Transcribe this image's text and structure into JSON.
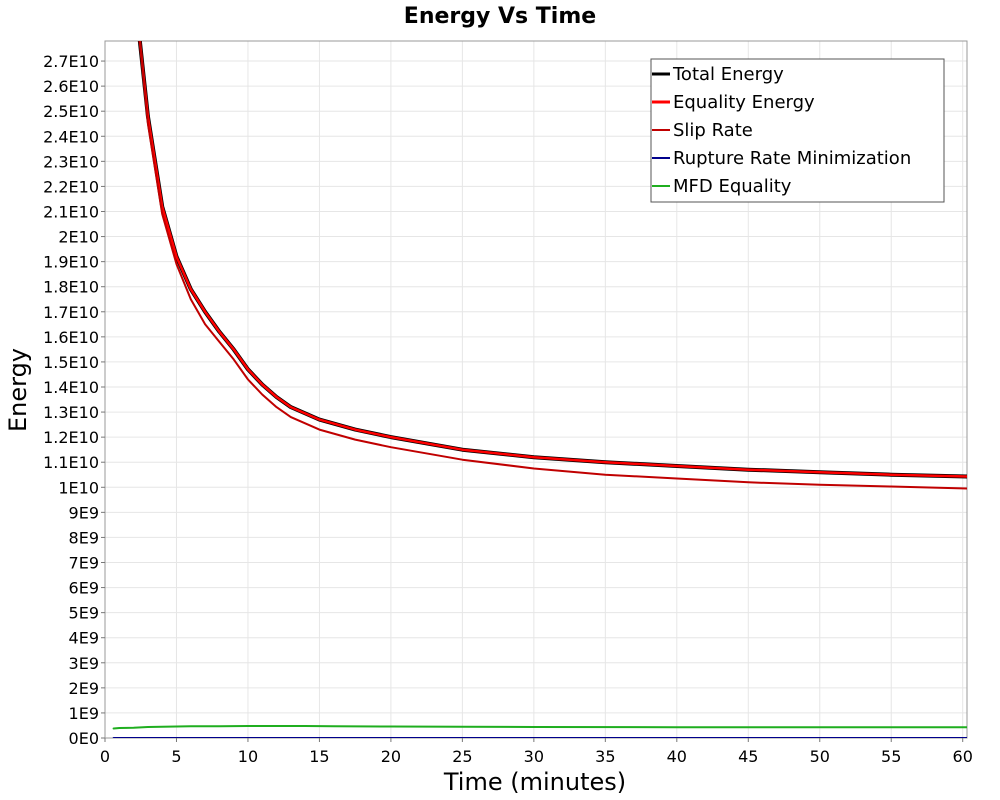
{
  "chart_data": {
    "type": "line",
    "title": "Energy Vs Time",
    "xlabel": "Time (minutes)",
    "ylabel": "Energy",
    "xlim": [
      0,
      60.3
    ],
    "ylim": [
      0,
      27800000000
    ],
    "grid": true,
    "legend_position": "top-right",
    "x_ticks": [
      0,
      5,
      10,
      15,
      20,
      25,
      30,
      35,
      40,
      45,
      50,
      55,
      60
    ],
    "x_tick_labels": [
      "0",
      "5",
      "10",
      "15",
      "20",
      "25",
      "30",
      "35",
      "40",
      "45",
      "50",
      "55",
      "60"
    ],
    "y_ticks": [
      0,
      1000000000,
      2000000000,
      3000000000,
      4000000000,
      5000000000,
      6000000000,
      7000000000,
      8000000000,
      9000000000,
      10000000000,
      11000000000,
      12000000000,
      13000000000,
      14000000000,
      15000000000,
      16000000000,
      17000000000,
      18000000000,
      19000000000,
      20000000000,
      21000000000,
      22000000000,
      23000000000,
      24000000000,
      25000000000,
      26000000000,
      27000000000
    ],
    "y_tick_labels": [
      "0E0",
      "1E9",
      "2E9",
      "3E9",
      "4E9",
      "5E9",
      "6E9",
      "7E9",
      "8E9",
      "9E9",
      "1E10",
      "1.1E10",
      "1.2E10",
      "1.3E10",
      "1.4E10",
      "1.5E10",
      "1.6E10",
      "1.7E10",
      "1.8E10",
      "1.9E10",
      "2E10",
      "2.1E10",
      "2.2E10",
      "2.3E10",
      "2.4E10",
      "2.5E10",
      "2.6E10",
      "2.7E10"
    ],
    "series": [
      {
        "name": "Total Energy",
        "color": "#000000",
        "x": [
          2.4,
          3,
          4,
          5,
          6,
          7,
          8,
          9,
          10,
          11,
          12,
          13,
          15,
          17.5,
          20,
          25,
          30,
          35,
          40,
          45,
          50,
          55,
          60.3
        ],
        "y": [
          28000000000,
          24800000000,
          21200000000,
          19200000000,
          17900000000,
          17000000000,
          16200000000,
          15500000000,
          14700000000,
          14100000000,
          13600000000,
          13200000000,
          12700000000,
          12300000000,
          12000000000,
          11500000000,
          11200000000,
          11000000000,
          10850000000,
          10700000000,
          10600000000,
          10500000000,
          10430000000
        ]
      },
      {
        "name": "Equality Energy",
        "color": "#ff0000",
        "x": [
          2.4,
          3,
          4,
          5,
          6,
          7,
          8,
          9,
          10,
          11,
          12,
          13,
          15,
          17.5,
          20,
          25,
          30,
          35,
          40,
          45,
          50,
          55,
          60.3
        ],
        "y": [
          28000000000,
          24800000000,
          21200000000,
          19200000000,
          17900000000,
          17000000000,
          16200000000,
          15500000000,
          14700000000,
          14100000000,
          13600000000,
          13200000000,
          12700000000,
          12300000000,
          12000000000,
          11500000000,
          11200000000,
          11000000000,
          10850000000,
          10700000000,
          10600000000,
          10500000000,
          10430000000
        ]
      },
      {
        "name": "Slip Rate",
        "color": "#c00000",
        "x": [
          2.4,
          3,
          4,
          5,
          6,
          7,
          8,
          9,
          10,
          11,
          12,
          13,
          15,
          17.5,
          20,
          25,
          30,
          35,
          40,
          45,
          50,
          55,
          60.3
        ],
        "y": [
          28000000000,
          24500000000,
          20900000000,
          18900000000,
          17500000000,
          16500000000,
          15800000000,
          15100000000,
          14300000000,
          13700000000,
          13200000000,
          12800000000,
          12300000000,
          11900000000,
          11600000000,
          11100000000,
          10750000000,
          10500000000,
          10350000000,
          10200000000,
          10100000000,
          10030000000,
          9950000000
        ]
      },
      {
        "name": "Rupture Rate Minimization",
        "color": "#00008b",
        "x": [
          0.6,
          5,
          10,
          15,
          20,
          30,
          40,
          50,
          60.3
        ],
        "y": [
          0,
          0,
          0,
          0,
          0,
          0,
          0,
          0,
          0
        ]
      },
      {
        "name": "MFD Equality",
        "color": "#1fae1f",
        "x": [
          0.6,
          1,
          2,
          3,
          4,
          5,
          6,
          8,
          10,
          12,
          14,
          16,
          20,
          25,
          30,
          40,
          50,
          60.3
        ],
        "y": [
          380000000,
          400000000,
          410000000,
          440000000,
          450000000,
          460000000,
          470000000,
          470000000,
          480000000,
          480000000,
          480000000,
          470000000,
          460000000,
          450000000,
          440000000,
          430000000,
          430000000,
          430000000
        ]
      }
    ]
  }
}
